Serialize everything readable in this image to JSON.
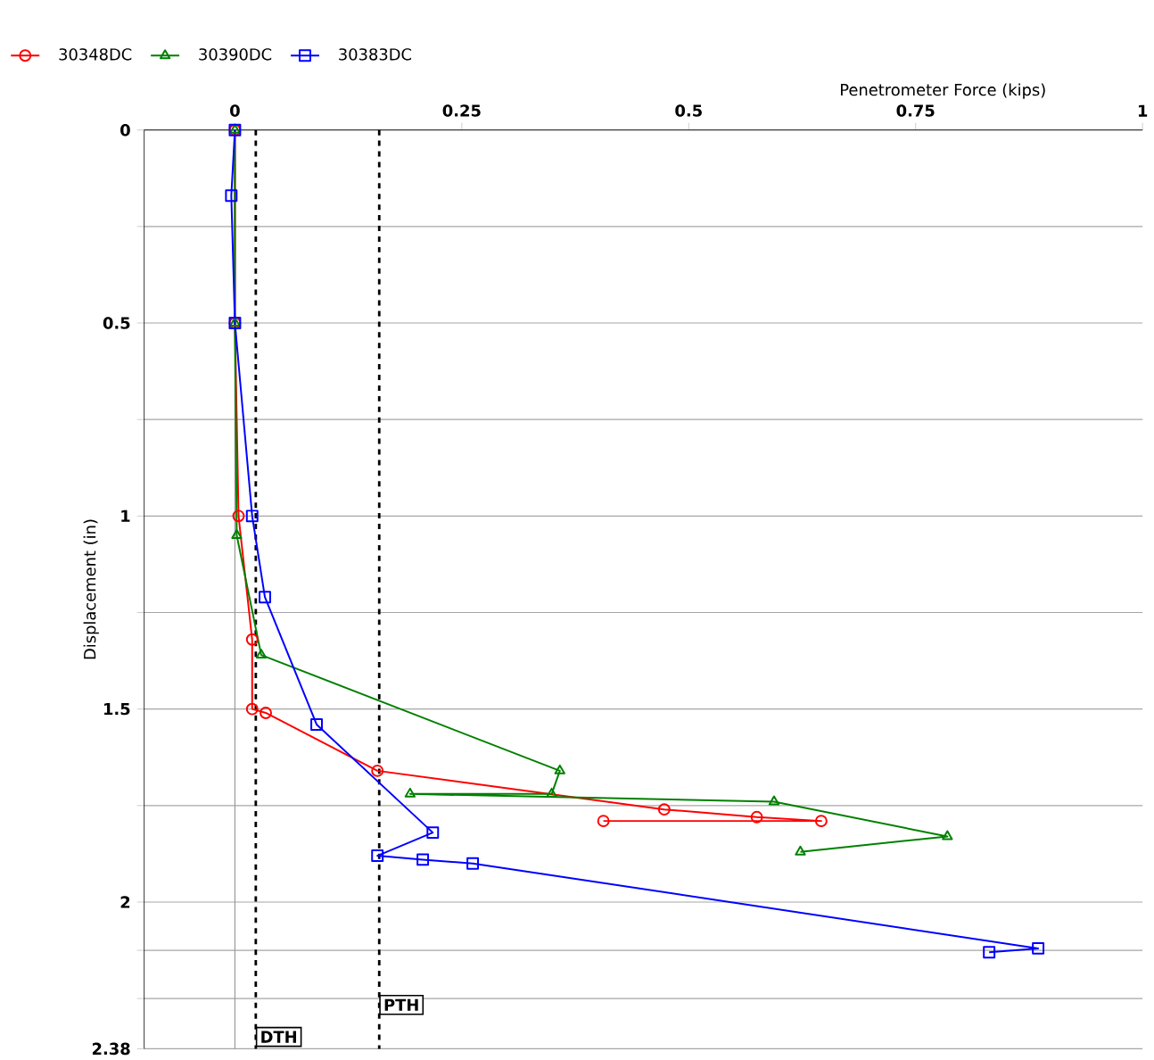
{
  "chart_data": {
    "type": "line",
    "xlabel": "Penetrometer Force (kips)",
    "ylabel": "Displacement (in)",
    "xlim": [
      -0.1,
      1.0
    ],
    "ylim": [
      2.38,
      0
    ],
    "xticks": [
      0,
      0.25,
      0.5,
      0.75,
      1
    ],
    "yticks": [
      0,
      {
        "value": 0.25,
        "label": null
      },
      0.5,
      {
        "value": 0.75,
        "label": null
      },
      1,
      {
        "value": 1.25,
        "label": null
      },
      1.5,
      {
        "value": 1.75,
        "label": null
      },
      2,
      {
        "value": 2.125,
        "label": null
      },
      {
        "value": 2.25,
        "label": null
      },
      2.38
    ],
    "grid": "y",
    "legend": "top left",
    "line_style": "solid",
    "series": [
      {
        "name": "30348DC",
        "color": "#ff0000",
        "marker": "circle",
        "x": [
          0,
          0,
          0.004,
          0.019,
          0.019,
          0.034,
          0.157,
          0.473,
          0.575,
          0.646,
          0.406
        ],
        "values": [
          0,
          0.5,
          1.0,
          1.32,
          1.5,
          1.51,
          1.66,
          1.76,
          1.78,
          1.79,
          1.79
        ]
      },
      {
        "name": "30390DC",
        "color": "#008000",
        "marker": "triangle",
        "x": [
          0,
          0,
          0.002,
          0.029,
          0.358,
          0.349,
          0.193,
          0.594,
          0.785,
          0.623
        ],
        "values": [
          0,
          0.5,
          1.05,
          1.36,
          1.66,
          1.72,
          1.72,
          1.74,
          1.83,
          1.87
        ]
      },
      {
        "name": "30383DC",
        "color": "#0000ff",
        "marker": "square",
        "x": [
          0,
          -0.004,
          0,
          0.019,
          0.033,
          0.09,
          0.218,
          0.157,
          0.207,
          0.262,
          0.885,
          0.831
        ],
        "values": [
          0,
          0.17,
          0.5,
          1.0,
          1.21,
          1.54,
          1.82,
          1.88,
          1.89,
          1.9,
          2.12,
          2.13
        ]
      }
    ],
    "ref_lines": [
      {
        "axis": "x",
        "value": 0,
        "color": "#999999",
        "line_style": "solid"
      },
      {
        "axis": "x",
        "value": 0.023,
        "label": "DTH",
        "color": "#000000",
        "line_style": "dashed"
      },
      {
        "axis": "x",
        "value": 0.159,
        "label": "PTH",
        "color": "#000000",
        "line_style": "dashed"
      }
    ]
  }
}
